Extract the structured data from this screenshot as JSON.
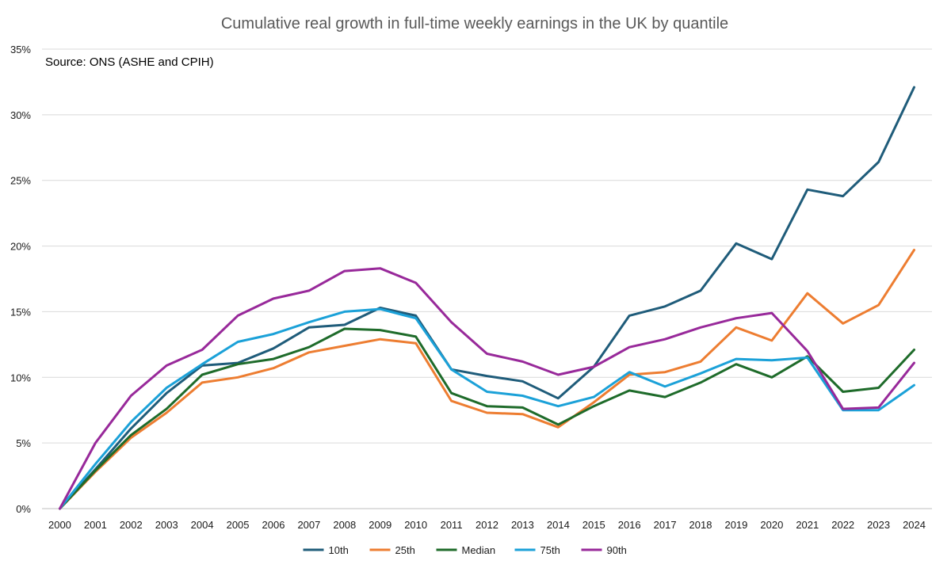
{
  "chart_data": {
    "type": "line",
    "title": "Cumulative real growth in full-time weekly earnings in the UK by quantile",
    "annotation": "Source: ONS (ASHE and CPIH)",
    "xlabel": "",
    "ylabel": "",
    "ylim": [
      0,
      35
    ],
    "y_ticks": [
      0,
      5,
      10,
      15,
      20,
      25,
      30,
      35
    ],
    "y_tick_labels": [
      "0%",
      "5%",
      "10%",
      "15%",
      "20%",
      "25%",
      "30%",
      "35%"
    ],
    "grid": true,
    "legend_position": "bottom",
    "categories": [
      "2000",
      "2001",
      "2002",
      "2003",
      "2004",
      "2005",
      "2006",
      "2007",
      "2008",
      "2009",
      "2010",
      "2011",
      "2012",
      "2013",
      "2014",
      "2015",
      "2016",
      "2017",
      "2018",
      "2019",
      "2020",
      "2021",
      "2022",
      "2023",
      "2024"
    ],
    "series": [
      {
        "name": "10th",
        "color": "#1f5c7a",
        "values": [
          0,
          3.0,
          6.1,
          8.8,
          10.9,
          11.1,
          12.2,
          13.8,
          14.0,
          15.3,
          14.7,
          10.6,
          10.1,
          9.7,
          8.4,
          10.8,
          14.7,
          15.4,
          16.6,
          20.2,
          19.0,
          24.3,
          23.8,
          26.4,
          32.1
        ]
      },
      {
        "name": "25th",
        "color": "#ed7d31",
        "values": [
          0,
          2.8,
          5.4,
          7.3,
          9.6,
          10.0,
          10.7,
          11.9,
          12.4,
          12.9,
          12.6,
          8.2,
          7.3,
          7.2,
          6.2,
          8.1,
          10.2,
          10.4,
          11.2,
          13.8,
          12.8,
          16.4,
          14.1,
          15.5,
          19.7
        ]
      },
      {
        "name": "Median",
        "color": "#1e6b2a",
        "values": [
          0,
          2.9,
          5.6,
          7.6,
          10.2,
          11.0,
          11.4,
          12.3,
          13.7,
          13.6,
          13.1,
          8.8,
          7.8,
          7.7,
          6.4,
          7.8,
          9.0,
          8.5,
          9.6,
          11.0,
          10.0,
          11.6,
          8.9,
          9.2,
          12.1
        ]
      },
      {
        "name": "75th",
        "color": "#1ba1d8",
        "values": [
          0,
          3.4,
          6.6,
          9.2,
          11.0,
          12.7,
          13.3,
          14.2,
          15.0,
          15.2,
          14.5,
          10.6,
          8.9,
          8.6,
          7.8,
          8.5,
          10.4,
          9.3,
          10.3,
          11.4,
          11.3,
          11.5,
          7.5,
          7.5,
          9.4
        ]
      },
      {
        "name": "90th",
        "color": "#98299a",
        "values": [
          0,
          5.0,
          8.6,
          10.9,
          12.1,
          14.7,
          16.0,
          16.6,
          18.1,
          18.3,
          17.2,
          14.2,
          11.8,
          11.2,
          10.2,
          10.8,
          12.3,
          12.9,
          13.8,
          14.5,
          14.9,
          12.0,
          7.6,
          7.7,
          11.1
        ]
      }
    ]
  }
}
